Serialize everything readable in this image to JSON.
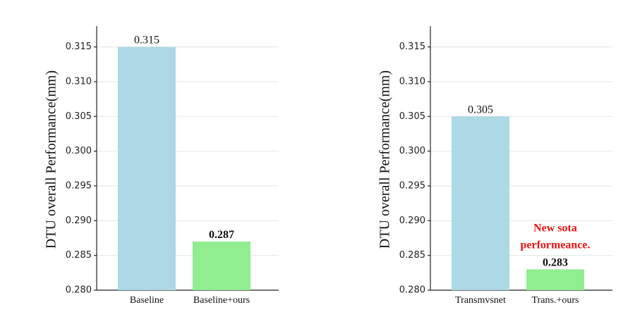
{
  "chart_data": [
    {
      "type": "bar",
      "ylabel": "DTU overall Performance(mm)",
      "categories": [
        "Baseline",
        "Baseline+ours"
      ],
      "values": [
        0.315,
        0.287
      ],
      "colors": [
        "#add8e6",
        "#90ee90"
      ],
      "ylim": [
        0.28,
        0.318
      ],
      "yticks": [
        {
          "value": 0.28,
          "label": "0.280"
        },
        0.285,
        {
          "value": 0.29,
          "label": "0.290"
        },
        0.295,
        {
          "value": 0.3,
          "label": "0.300"
        },
        0.305,
        {
          "value": 0.31,
          "label": "0.310"
        },
        0.315
      ],
      "grid": true
    },
    {
      "type": "bar",
      "ylabel": "DTU overall Performance(mm)",
      "categories": [
        "Transmvsnet",
        "Trans.+ours"
      ],
      "values": [
        0.305,
        0.283
      ],
      "colors": [
        "#add8e6",
        "#90ee90"
      ],
      "ylim": [
        0.28,
        0.318
      ],
      "yticks": [
        {
          "value": 0.28,
          "label": "0.280"
        },
        0.285,
        {
          "value": 0.29,
          "label": "0.290"
        },
        0.295,
        {
          "value": 0.3,
          "label": "0.300"
        },
        0.305,
        {
          "value": 0.31,
          "label": "0.310"
        },
        0.315
      ],
      "grid": true,
      "annotation": [
        "New sota",
        "performeance."
      ]
    }
  ]
}
